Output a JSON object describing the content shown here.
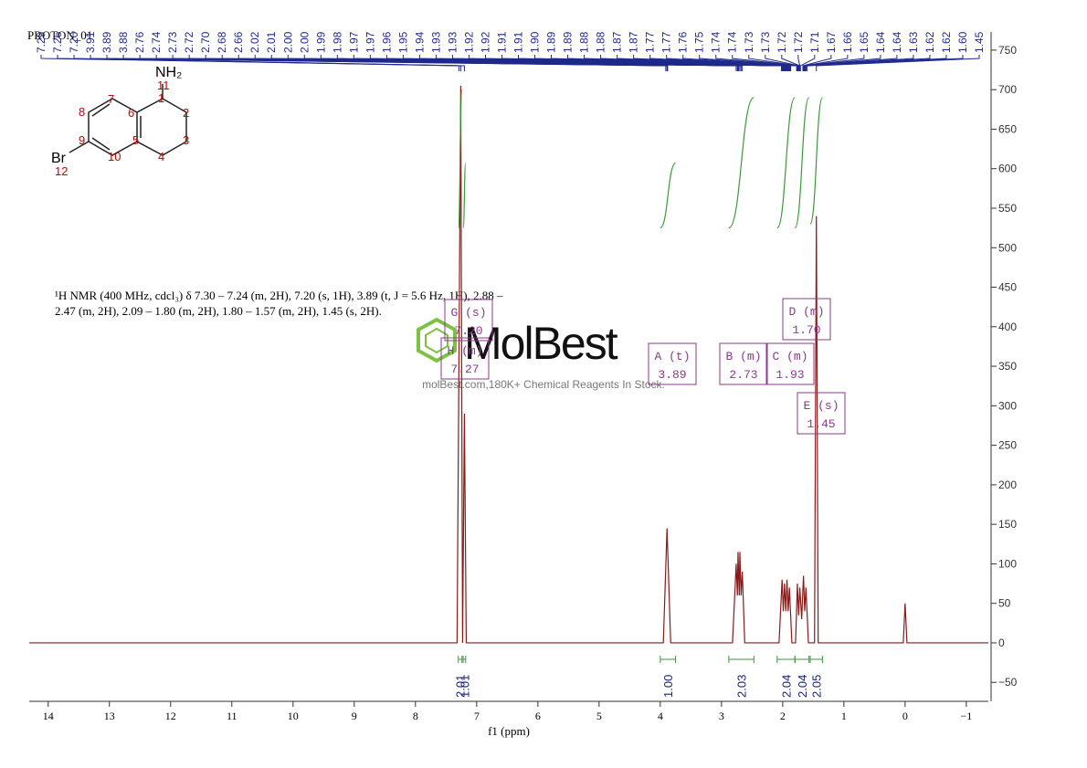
{
  "chart_data": {
    "type": "line",
    "title": "PROTON_01",
    "x_label": "f1 (ppm)",
    "description": [
      "¹H NMR (400 MHz, cdcl₃) δ 7.30 – 7.24 (m, 2H), 7.20 (s, 1H), 3.89 (t, J = 5.6 Hz, 1H), 2.88 –",
      "2.47 (m, 2H), 2.09 – 1.80 (m, 2H), 1.80 – 1.57 (m, 2H), 1.45 (s, 2H)."
    ],
    "watermark": "MolBest",
    "watermark_sub": "molBest.com,180K+ Chemical Reagents In Stock.",
    "color": "#8b1a1a",
    "x": [
      14.31,
      7.32,
      7.26,
      7.23,
      7.2,
      7.17,
      3.95,
      3.89,
      3.83,
      2.82,
      2.76,
      2.74,
      2.73,
      2.71,
      2.7,
      2.68,
      2.66,
      2.62,
      2.06,
      2.01,
      1.99,
      1.97,
      1.95,
      1.93,
      1.91,
      1.89,
      1.85,
      1.79,
      1.76,
      1.74,
      1.72,
      1.69,
      1.66,
      1.64,
      1.62,
      1.58,
      1.48,
      1.45,
      1.42,
      0.03,
      0.0,
      -0.03,
      -1.36
    ],
    "values": [
      0,
      0,
      705,
      0,
      290,
      0,
      0,
      145,
      0,
      0,
      100,
      60,
      115,
      60,
      115,
      60,
      90,
      0,
      0,
      80,
      40,
      75,
      40,
      80,
      40,
      70,
      0,
      0,
      75,
      35,
      70,
      30,
      85,
      40,
      70,
      0,
      0,
      540,
      0,
      0,
      50,
      0,
      0
    ],
    "xlim": [
      14.31,
      -1.36
    ],
    "xticks": [
      14,
      13,
      12,
      11,
      10,
      9,
      8,
      7,
      6,
      5,
      4,
      3,
      2,
      1,
      0,
      {
        "value": -1,
        "label": "−1"
      }
    ],
    "ylim": [
      -74,
      773
    ],
    "yticks": [
      {
        "value": -50,
        "label": "−50"
      },
      0,
      50,
      100,
      150,
      200,
      250,
      300,
      350,
      400,
      450,
      500,
      550,
      600,
      650,
      700,
      750
    ],
    "peak_labels": [
      "7.29",
      "7.26",
      "7.20",
      "3.91",
      "3.89",
      "3.88",
      "2.76",
      "2.74",
      "2.73",
      "2.72",
      "2.70",
      "2.68",
      "2.66",
      "2.02",
      "2.01",
      "2.00",
      "2.00",
      "1.99",
      "1.98",
      "1.97",
      "1.97",
      "1.96",
      "1.95",
      "1.94",
      "1.93",
      "1.93",
      "1.92",
      "1.92",
      "1.91",
      "1.91",
      "1.90",
      "1.89",
      "1.89",
      "1.88",
      "1.88",
      "1.87",
      "1.87",
      "1.77",
      "1.77",
      "1.76",
      "1.75",
      "1.74",
      "1.74",
      "1.73",
      "1.73",
      "1.72",
      "1.72",
      "1.71",
      "1.67",
      "1.66",
      "1.65",
      "1.64",
      "1.64",
      "1.63",
      "1.62",
      "1.62",
      "1.60",
      "1.45"
    ],
    "integrals": [
      {
        "label": "2.01",
        "from": 7.3,
        "to": 7.24,
        "curve": [
          525,
          700
        ]
      },
      {
        "label": "1.01",
        "from": 7.22,
        "to": 7.18,
        "curve": [
          525,
          607
        ]
      },
      {
        "label": "1.00",
        "from": 4.0,
        "to": 3.75,
        "curve": [
          525,
          607
        ]
      },
      {
        "label": "2.03",
        "from": 2.88,
        "to": 2.47,
        "curve": [
          525,
          690
        ]
      },
      {
        "label": "2.04",
        "from": 2.09,
        "to": 1.8,
        "curve": [
          525,
          690
        ]
      },
      {
        "label": "2.04",
        "from": 1.8,
        "to": 1.57,
        "curve": [
          525,
          690
        ]
      },
      {
        "label": "2.05",
        "from": 1.55,
        "to": 1.35,
        "curve": [
          530,
          690
        ]
      }
    ],
    "multiplets": [
      {
        "name": "G (s)",
        "shift": "7.20"
      },
      {
        "name": "H (m)",
        "shift": "7.27"
      },
      {
        "name": "A (t)",
        "shift": "3.89"
      },
      {
        "name": "B (m)",
        "shift": "2.73"
      },
      {
        "name": "C (m)",
        "shift": "1.93"
      },
      {
        "name": "D (m)",
        "shift": "1.70"
      },
      {
        "name": "E (s)",
        "shift": "1.45"
      }
    ],
    "structure": {
      "amine": "NH₂",
      "halogen": "Br",
      "numbers": [
        "1",
        "2",
        "3",
        "4",
        "5",
        "6",
        "7",
        "8",
        "9",
        "10",
        "11",
        "12"
      ]
    }
  }
}
